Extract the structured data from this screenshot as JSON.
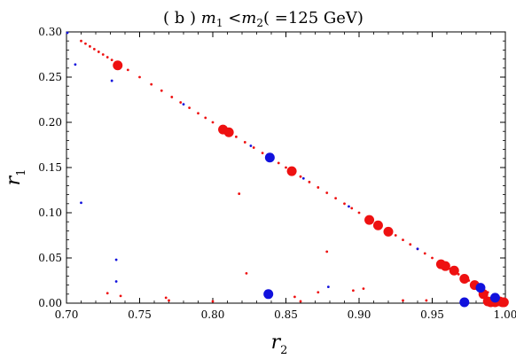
{
  "chart_data": {
    "type": "scatter",
    "title": "(b) m1 < m2 (=125 GeV)",
    "title_parts": {
      "prefix": "( b ) ",
      "var1": "m",
      "sub1": "1",
      "relation": " <",
      "var2": "m",
      "sub2": "2",
      "suffix": "( =125 GeV)"
    },
    "xlabel": {
      "var": "r",
      "sub": "2"
    },
    "ylabel": {
      "var": "r",
      "sub": "1"
    },
    "xlim": [
      0.7,
      1.0
    ],
    "ylim": [
      0.0,
      0.3
    ],
    "xticks": [
      "0.70",
      "0.75",
      "0.80",
      "0.85",
      "0.90",
      "0.95",
      "1.00"
    ],
    "yticks": [
      "0.00",
      "0.05",
      "0.10",
      "0.15",
      "0.20",
      "0.25",
      "0.30"
    ],
    "grid": false,
    "colors": {
      "red": "#ee1111",
      "blue": "#1111dd"
    },
    "series": [
      {
        "color": "red",
        "size": "large",
        "points": [
          [
            0.735,
            0.263
          ],
          [
            0.807,
            0.192
          ],
          [
            0.811,
            0.189
          ],
          [
            0.854,
            0.146
          ],
          [
            0.907,
            0.092
          ],
          [
            0.913,
            0.086
          ],
          [
            0.92,
            0.079
          ],
          [
            0.956,
            0.043
          ],
          [
            0.959,
            0.041
          ],
          [
            0.965,
            0.036
          ],
          [
            0.972,
            0.027
          ],
          [
            0.979,
            0.02
          ],
          [
            0.985,
            0.01
          ],
          [
            0.988,
            0.002
          ],
          [
            0.99,
            0.001
          ],
          [
            0.993,
            0.0
          ],
          [
            0.996,
            0.002
          ],
          [
            0.998,
            0.001
          ],
          [
            0.999,
            0.0
          ]
        ]
      },
      {
        "color": "blue",
        "size": "large",
        "points": [
          [
            0.839,
            0.161
          ],
          [
            0.838,
            0.01
          ],
          [
            0.972,
            0.0
          ],
          [
            0.983,
            0.017
          ],
          [
            0.993,
            0.006
          ]
        ]
      },
      {
        "color": "red",
        "size": "small",
        "points": [
          [
            0.71,
            0.29
          ],
          [
            0.713,
            0.287
          ],
          [
            0.716,
            0.284
          ],
          [
            0.719,
            0.281
          ],
          [
            0.722,
            0.278
          ],
          [
            0.725,
            0.275
          ],
          [
            0.728,
            0.272
          ],
          [
            0.731,
            0.269
          ],
          [
            0.742,
            0.258
          ],
          [
            0.75,
            0.25
          ],
          [
            0.758,
            0.242
          ],
          [
            0.765,
            0.235
          ],
          [
            0.772,
            0.228
          ],
          [
            0.778,
            0.222
          ],
          [
            0.784,
            0.216
          ],
          [
            0.79,
            0.21
          ],
          [
            0.795,
            0.205
          ],
          [
            0.8,
            0.2
          ],
          [
            0.816,
            0.184
          ],
          [
            0.822,
            0.178
          ],
          [
            0.828,
            0.172
          ],
          [
            0.834,
            0.166
          ],
          [
            0.845,
            0.155
          ],
          [
            0.85,
            0.15
          ],
          [
            0.86,
            0.14
          ],
          [
            0.866,
            0.134
          ],
          [
            0.872,
            0.128
          ],
          [
            0.878,
            0.122
          ],
          [
            0.884,
            0.116
          ],
          [
            0.89,
            0.11
          ],
          [
            0.895,
            0.105
          ],
          [
            0.9,
            0.1
          ],
          [
            0.925,
            0.075
          ],
          [
            0.93,
            0.07
          ],
          [
            0.935,
            0.065
          ],
          [
            0.94,
            0.06
          ],
          [
            0.945,
            0.055
          ],
          [
            0.95,
            0.05
          ],
          [
            0.962,
            0.038
          ],
          [
            0.968,
            0.032
          ],
          [
            0.975,
            0.025
          ],
          [
            0.982,
            0.018
          ],
          [
            0.988,
            0.012
          ],
          [
            0.994,
            0.006
          ],
          [
            0.818,
            0.121
          ],
          [
            0.878,
            0.057
          ],
          [
            0.728,
            0.011
          ],
          [
            0.737,
            0.008
          ],
          [
            0.768,
            0.006
          ],
          [
            0.77,
            0.003
          ],
          [
            0.823,
            0.033
          ],
          [
            0.856,
            0.007
          ],
          [
            0.872,
            0.012
          ],
          [
            0.896,
            0.014
          ],
          [
            0.903,
            0.016
          ],
          [
            0.946,
            0.003
          ],
          [
            0.93,
            0.003
          ],
          [
            0.86,
            0.002
          ],
          [
            0.8,
            0.002
          ]
        ]
      },
      {
        "color": "blue",
        "size": "small",
        "points": [
          [
            0.7,
            0.3
          ],
          [
            0.706,
            0.264
          ],
          [
            0.71,
            0.111
          ],
          [
            0.731,
            0.246
          ],
          [
            0.734,
            0.048
          ],
          [
            0.734,
            0.024
          ],
          [
            0.78,
            0.22
          ],
          [
            0.826,
            0.174
          ],
          [
            0.862,
            0.138
          ],
          [
            0.893,
            0.107
          ],
          [
            0.94,
            0.06
          ],
          [
            0.879,
            0.018
          ],
          [
            0.96,
            0.038
          ]
        ]
      }
    ]
  }
}
